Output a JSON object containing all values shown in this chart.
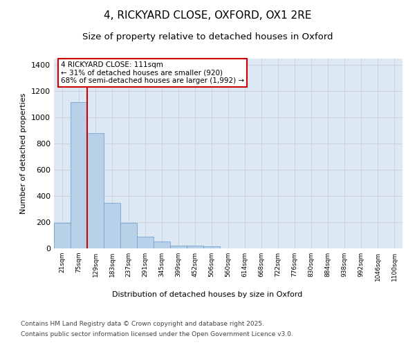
{
  "title_line1": "4, RICKYARD CLOSE, OXFORD, OX1 2RE",
  "title_line2": "Size of property relative to detached houses in Oxford",
  "xlabel": "Distribution of detached houses by size in Oxford",
  "ylabel": "Number of detached properties",
  "categories": [
    "21sqm",
    "75sqm",
    "129sqm",
    "183sqm",
    "237sqm",
    "291sqm",
    "345sqm",
    "399sqm",
    "452sqm",
    "506sqm",
    "560sqm",
    "614sqm",
    "668sqm",
    "722sqm",
    "776sqm",
    "830sqm",
    "884sqm",
    "938sqm",
    "992sqm",
    "1046sqm",
    "1100sqm"
  ],
  "values": [
    195,
    1120,
    880,
    350,
    195,
    90,
    55,
    20,
    20,
    15,
    0,
    0,
    0,
    0,
    0,
    0,
    0,
    0,
    0,
    0,
    0
  ],
  "bar_color": "#b8d0e8",
  "bar_edge_color": "#6699cc",
  "vline_color": "#cc0000",
  "annotation_text": "4 RICKYARD CLOSE: 111sqm\n← 31% of detached houses are smaller (920)\n68% of semi-detached houses are larger (1,992) →",
  "annotation_box_color": "#cc0000",
  "annotation_bg": "#ffffff",
  "ylim": [
    0,
    1450
  ],
  "yticks": [
    0,
    200,
    400,
    600,
    800,
    1000,
    1200,
    1400
  ],
  "grid_color": "#c8c8d0",
  "bg_color": "#dde8f5",
  "footer_line1": "Contains HM Land Registry data © Crown copyright and database right 2025.",
  "footer_line2": "Contains public sector information licensed under the Open Government Licence v3.0.",
  "title_fontsize": 11,
  "subtitle_fontsize": 9.5,
  "footer_fontsize": 6.5
}
